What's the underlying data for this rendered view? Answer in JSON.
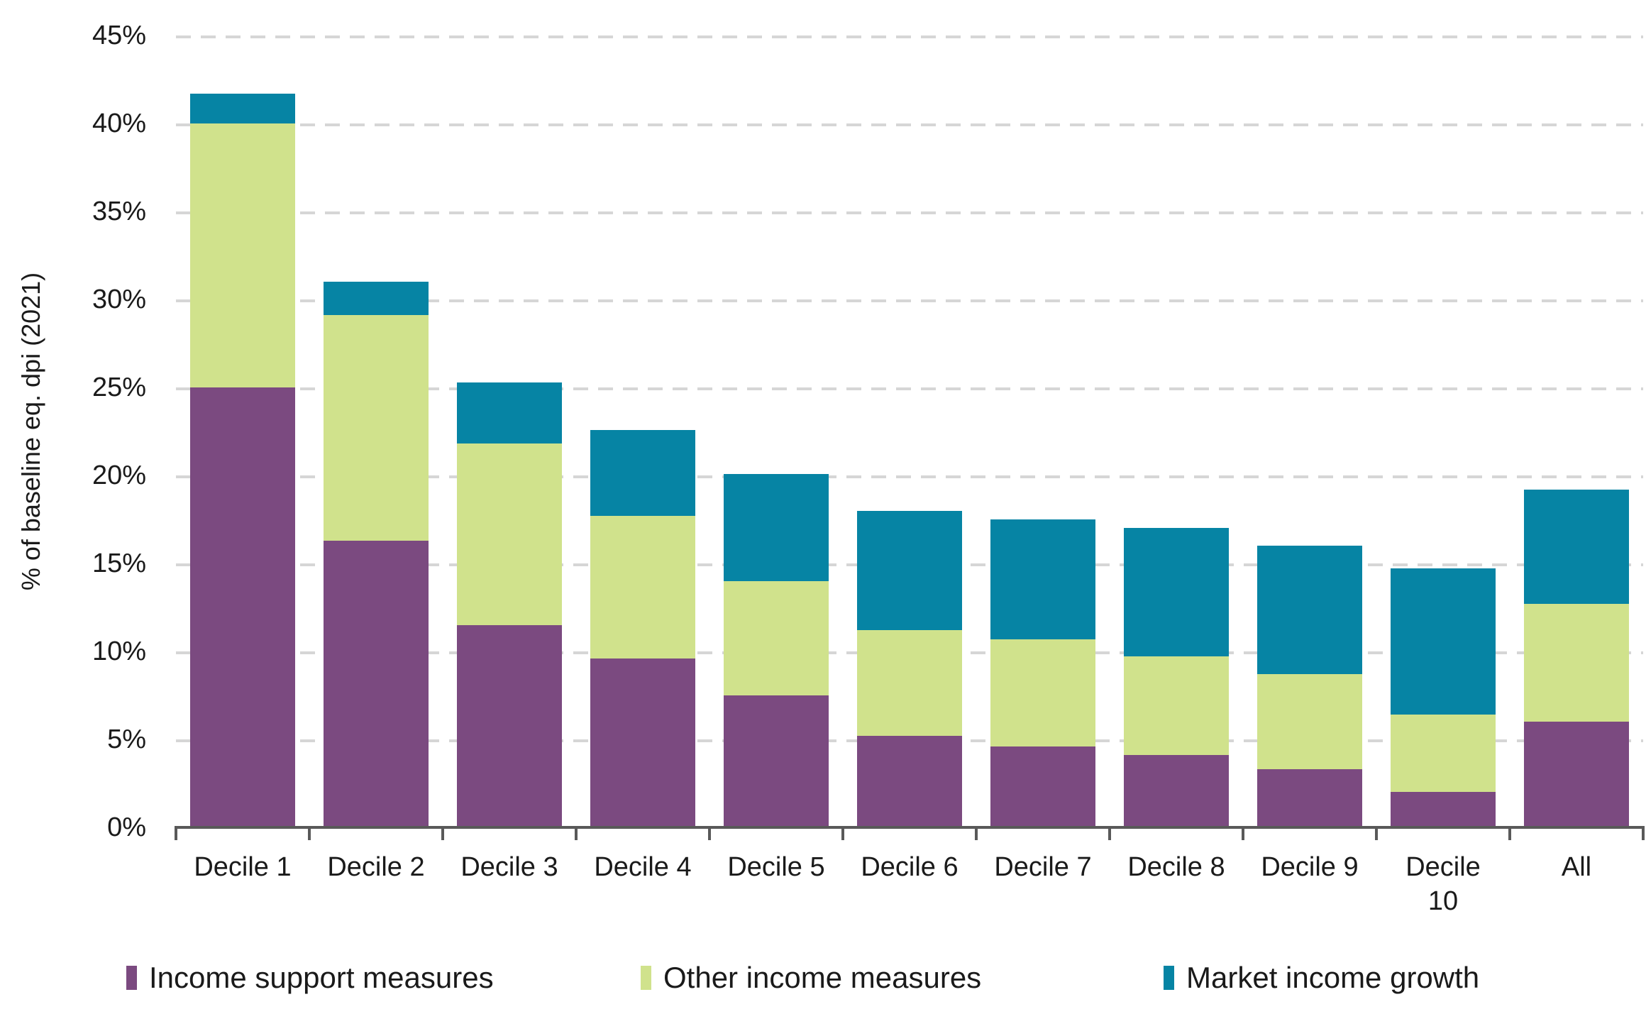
{
  "chart_data": {
    "type": "bar",
    "stacked": true,
    "title": "",
    "xlabel": "",
    "ylabel": "% of baseline eq. dpi (2021)",
    "ylim": [
      0,
      45
    ],
    "y_tick_step": 5,
    "y_tick_labels": [
      "45%",
      "40%",
      "35%",
      "30%",
      "25%",
      "20%",
      "15%",
      "10%",
      "5%",
      "0%"
    ],
    "grid": "horizontal dashed",
    "legend_position": "bottom",
    "categories": [
      "Decile 1",
      "Decile 2",
      "Decile 3",
      "Decile 4",
      "Decile 5",
      "Decile 6",
      "Decile 7",
      "Decile 8",
      "Decile 9",
      "Decile 10",
      "All"
    ],
    "x_display_labels": [
      "Decile 1",
      "Decile 2",
      "Decile 3",
      "Decile 4",
      "Decile 5",
      "Decile 6",
      "Decile 7",
      "Decile 8",
      "Decile 9",
      "Decile\n10",
      "All"
    ],
    "series": [
      {
        "name": "Income support measures",
        "color": "#7b4a80",
        "values": [
          25.0,
          16.3,
          11.5,
          9.6,
          7.5,
          5.2,
          4.6,
          4.1,
          3.3,
          2.0,
          6.0
        ]
      },
      {
        "name": "Other income measures",
        "color": "#d0e28c",
        "values": [
          15.0,
          12.8,
          10.3,
          8.1,
          6.5,
          6.0,
          6.1,
          5.6,
          5.4,
          4.4,
          6.7
        ]
      },
      {
        "name": "Market income growth",
        "color": "#0684a4",
        "values": [
          1.7,
          1.9,
          3.5,
          4.9,
          6.1,
          6.8,
          6.8,
          7.3,
          7.3,
          8.3,
          6.5
        ]
      }
    ],
    "stack_totals": [
      41.7,
      31.0,
      25.3,
      22.6,
      20.1,
      18.0,
      17.5,
      17.0,
      16.0,
      14.7,
      19.2
    ],
    "colors": {
      "axis": "#595959",
      "gridline": "#d6d6d6",
      "text": "#1a1a1a"
    }
  }
}
